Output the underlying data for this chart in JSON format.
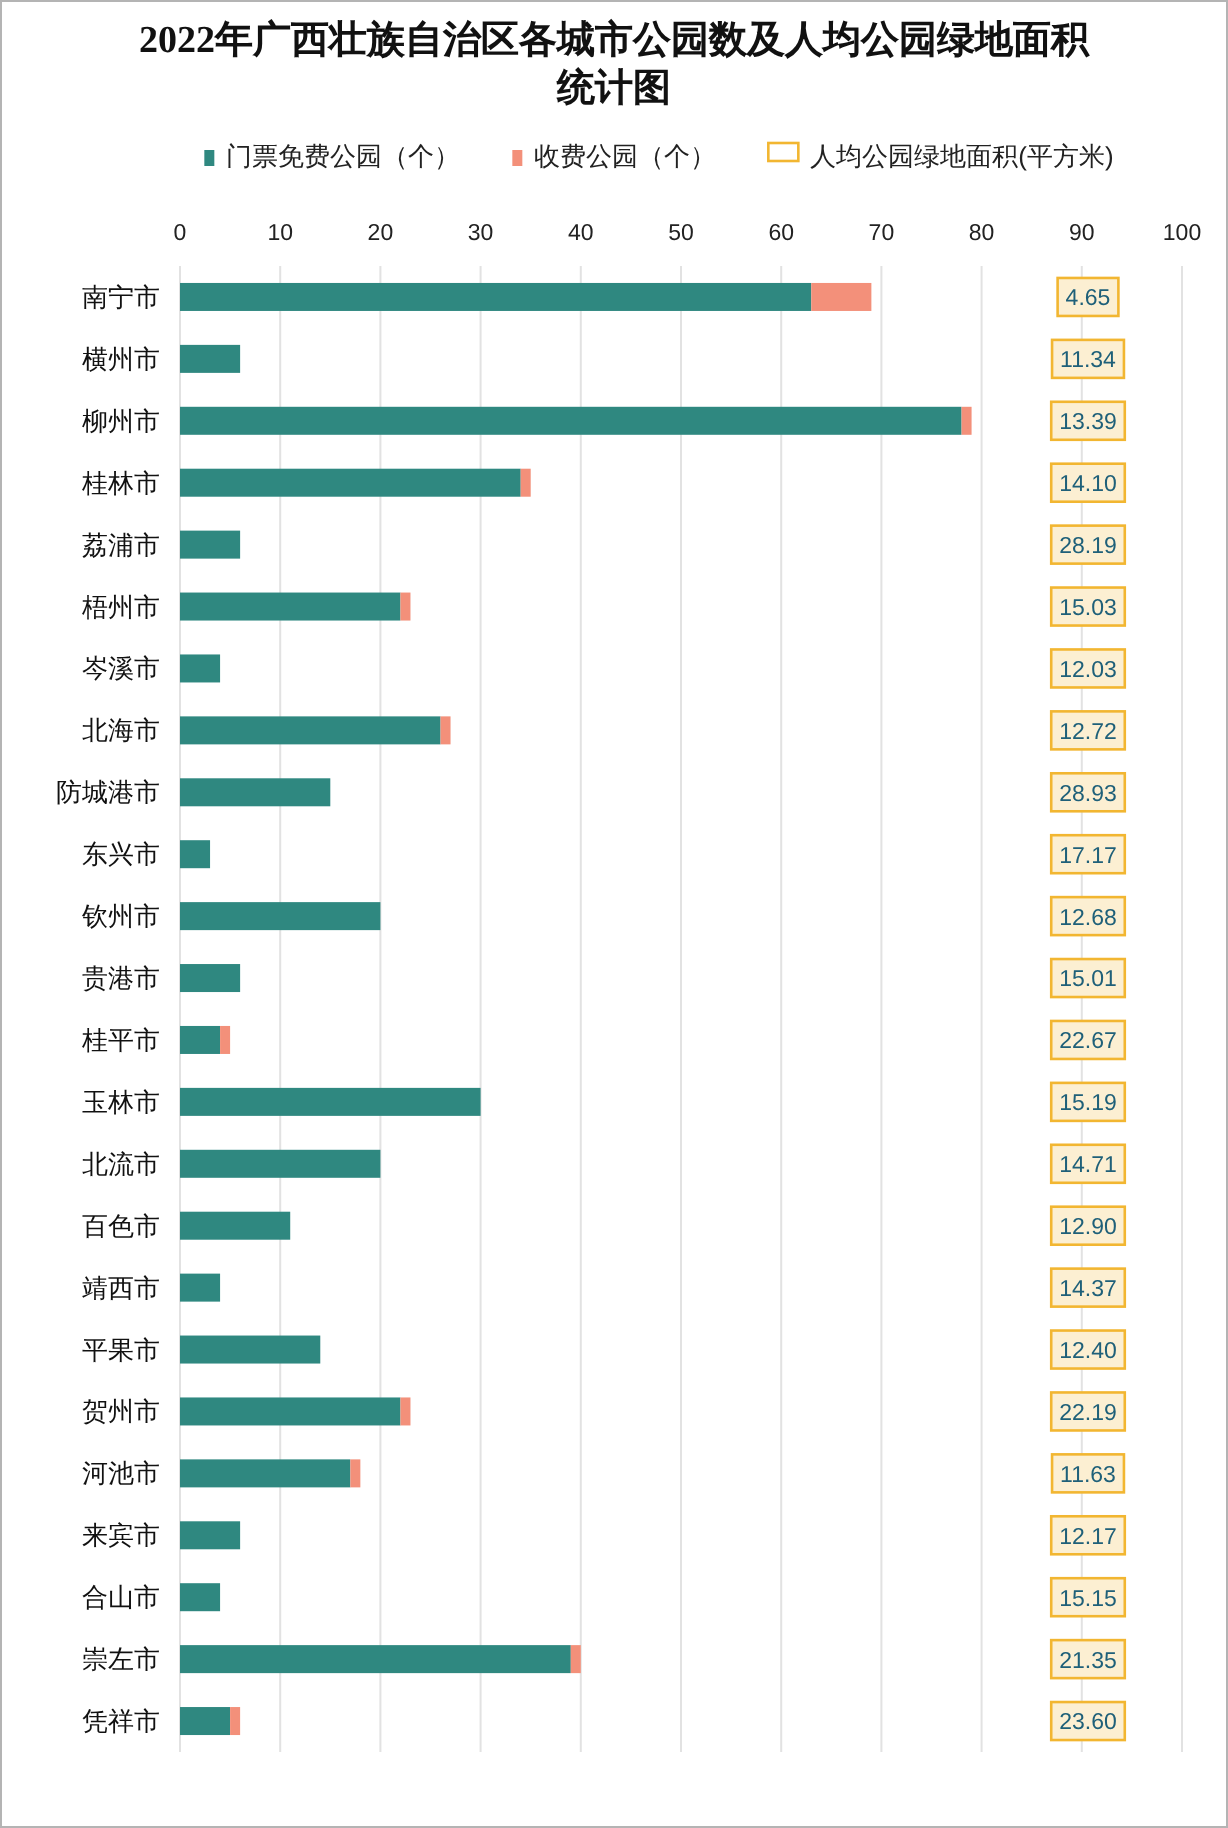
{
  "chart_data": [
    {
      "type": "bar",
      "orientation": "horizontal",
      "stacked": true,
      "title": "2022年广西壮族自治区各城市公园数及人均公园绿地面积统计图",
      "categories": [
        "南宁市",
        "横州市",
        "柳州市",
        "桂林市",
        "荔浦市",
        "梧州市",
        "岑溪市",
        "北海市",
        "防城港市",
        "东兴市",
        "钦州市",
        "贵港市",
        "桂平市",
        "玉林市",
        "北流市",
        "百色市",
        "靖西市",
        "平果市",
        "贺州市",
        "河池市",
        "来宾市",
        "合山市",
        "崇左市",
        "凭祥市"
      ],
      "series": [
        {
          "name": "门票免费公园（个）",
          "color": "#2f8880",
          "values": [
            63,
            6,
            78,
            34,
            6,
            22,
            4,
            26,
            15,
            3,
            20,
            6,
            4,
            30,
            20,
            11,
            4,
            14,
            22,
            17,
            6,
            4,
            39,
            5
          ]
        },
        {
          "name": "收费公园（个）",
          "color": "#f3907a",
          "values": [
            6,
            0,
            1,
            1,
            0,
            1,
            0,
            1,
            0,
            0,
            0,
            0,
            1,
            0,
            0,
            0,
            0,
            0,
            1,
            1,
            0,
            0,
            1,
            1
          ]
        }
      ],
      "xlim": [
        0,
        100
      ],
      "xticks": [
        0,
        10,
        20,
        30,
        40,
        50,
        60,
        70,
        80,
        90,
        100
      ],
      "grid": "x",
      "legend": "top"
    },
    {
      "type": "other",
      "categories": [
        null,
        null,
        null,
        null,
        null,
        null,
        null,
        null,
        null,
        null,
        null,
        null,
        null,
        null,
        null,
        null,
        null,
        null,
        null,
        null,
        null,
        null,
        null,
        null
      ],
      "series": [
        {
          "name": "人均公园绿地面积(平方米)",
          "color": "#f2b631",
          "values": [
            4.65,
            11.34,
            13.39,
            14.1,
            28.19,
            15.03,
            12.03,
            12.72,
            28.93,
            17.17,
            12.68,
            15.01,
            22.67,
            15.19,
            14.71,
            12.9,
            14.37,
            12.4,
            22.19,
            11.63,
            12.17,
            15.15,
            21.35,
            23.6
          ],
          "value_labels": [
            "4.65",
            "11.34",
            "13.39",
            "14.10",
            "28.19",
            "15.03",
            "12.03",
            "12.72",
            "28.93",
            "17.17",
            "12.68",
            "15.01",
            "22.67",
            "15.19",
            "14.71",
            "12.90",
            "14.37",
            "12.40",
            "22.19",
            "11.63",
            "12.17",
            "15.15",
            "21.35",
            "23.60"
          ]
        }
      ],
      "legend": "top"
    }
  ]
}
